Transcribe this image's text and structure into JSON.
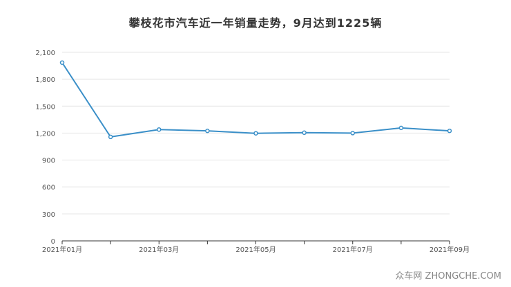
{
  "chart_data": {
    "type": "line",
    "title": "攀枝花市汽车近一年销量走势，9月达到1225辆",
    "xlabel": "",
    "ylabel": "",
    "x": [
      "2021年01月",
      "2021年02月",
      "2021年03月",
      "2021年04月",
      "2021年05月",
      "2021年06月",
      "2021年07月",
      "2021年08月",
      "2021年09月"
    ],
    "x_tick_labels": [
      "2021年01月",
      "2021年03月",
      "2021年05月",
      "2021年07月",
      "2021年09月"
    ],
    "y_tick_labels": [
      "0",
      "300",
      "600",
      "900",
      "1,200",
      "1,500",
      "1,800",
      "2,100"
    ],
    "values": [
      1985,
      1158,
      1240,
      1225,
      1198,
      1205,
      1200,
      1258,
      1225
    ],
    "ylim": [
      0,
      2100
    ],
    "grid": true,
    "legend": "none",
    "line_color": "#3a8fc8"
  },
  "watermark": "众车网 ZHONGCHE.COM"
}
